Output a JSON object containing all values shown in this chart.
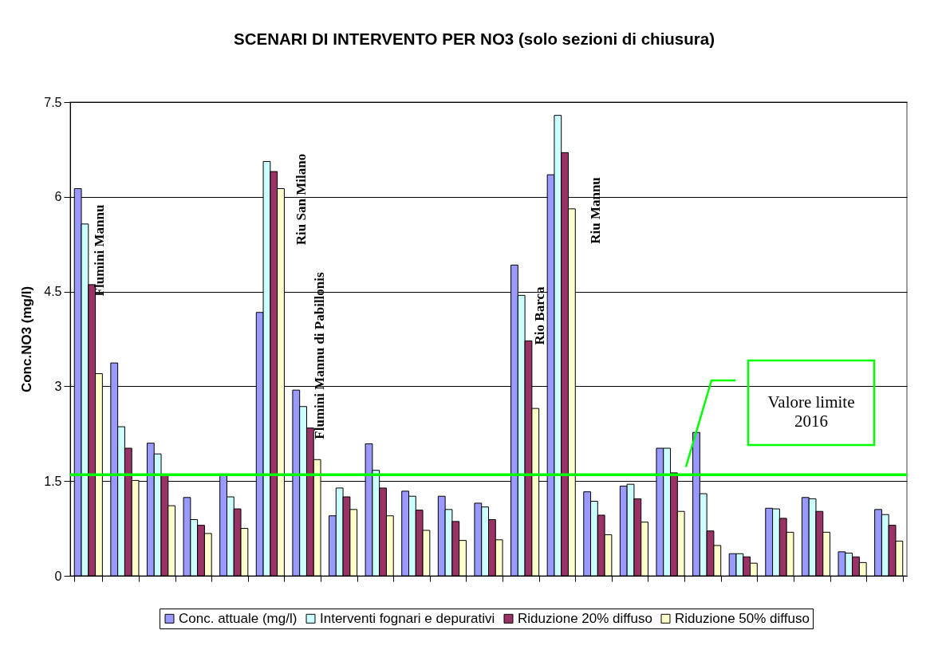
{
  "chart_data": {
    "type": "bar",
    "title": "SCENARI DI INTERVENTO PER NO3 (solo sezioni di chiusura)",
    "ylabel": "Conc.NO3 (mg/l)",
    "categories": [
      null,
      null,
      null,
      null,
      null,
      null,
      null,
      null,
      null,
      null,
      null,
      null,
      null,
      null,
      null,
      null,
      null,
      null,
      null,
      null,
      null,
      null,
      null
    ],
    "series": [
      {
        "name": "Conc. attuale (mg/l)",
        "color": "#9999ff",
        "values": [
          6.13,
          3.37,
          2.1,
          1.24,
          1.61,
          4.17,
          2.94,
          0.95,
          2.09,
          1.34,
          1.26,
          1.15,
          4.92,
          6.35,
          1.33,
          1.42,
          2.02,
          2.27,
          0.35,
          1.07,
          1.24,
          0.38,
          1.05
        ]
      },
      {
        "name": "Interventi fognari e depurativi",
        "color": "#ccffff",
        "values": [
          5.57,
          2.36,
          1.93,
          0.89,
          1.25,
          6.56,
          2.68,
          1.39,
          1.67,
          1.26,
          1.05,
          1.09,
          4.44,
          7.29,
          1.18,
          1.45,
          2.02,
          1.3,
          0.35,
          1.06,
          1.22,
          0.36,
          0.97
        ]
      },
      {
        "name": "Riduzione 20% diffuso",
        "color": "#993366",
        "values": [
          4.61,
          2.02,
          1.61,
          0.8,
          1.06,
          6.4,
          2.34,
          1.25,
          1.39,
          1.04,
          0.86,
          0.89,
          3.72,
          6.7,
          0.96,
          1.22,
          1.63,
          0.71,
          0.3,
          0.91,
          1.02,
          0.3,
          0.8
        ]
      },
      {
        "name": "Riduzione 50% diffuso",
        "color": "#ffffcc",
        "values": [
          3.2,
          1.51,
          1.11,
          0.67,
          0.75,
          6.13,
          1.84,
          1.05,
          0.95,
          0.72,
          0.56,
          0.57,
          2.65,
          5.81,
          0.65,
          0.85,
          1.02,
          0.48,
          0.2,
          0.69,
          0.69,
          0.21,
          0.55
        ]
      }
    ],
    "ylim": [
      0,
      7.5
    ],
    "yticks": [
      0,
      1.5,
      3,
      4.5,
      6,
      7.5
    ],
    "grid": "y",
    "legend": "bottom",
    "tick_labels": "y",
    "ref_lines": [
      {
        "axis": "y",
        "value": 1.6,
        "label": "Valore limite 2016",
        "color": "#00ff00"
      }
    ],
    "annotations": [
      "Flumini Mannu",
      "Riu San Milano",
      "Flumini Mannu di Pabillonis",
      "Rio Barca",
      "Riu Mannu"
    ]
  }
}
